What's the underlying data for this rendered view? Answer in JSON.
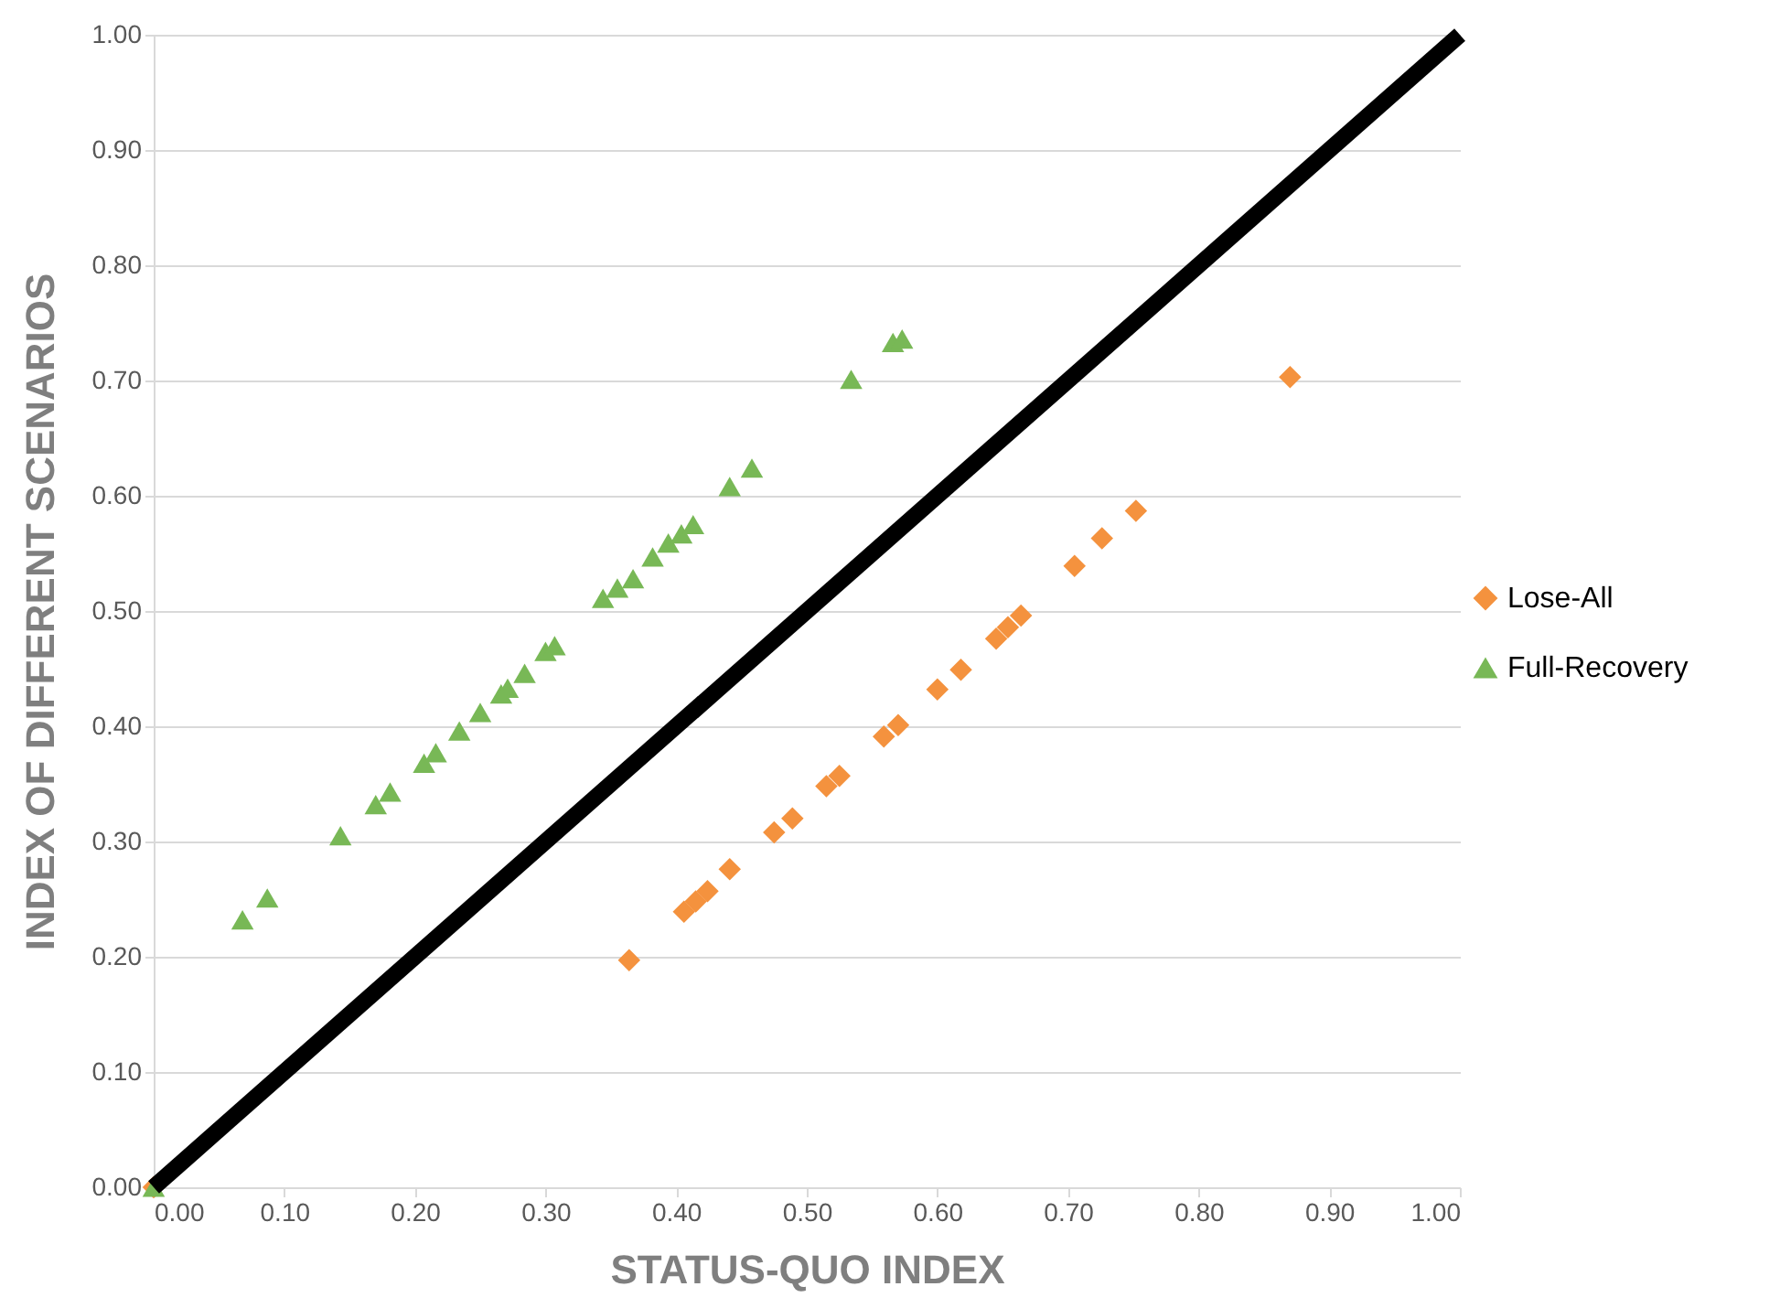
{
  "chart_data": {
    "type": "scatter",
    "xlabel": "STATUS-QUO INDEX",
    "ylabel": "INDEX OF DIFFERENT SCENARIOS",
    "xlim": [
      0,
      1
    ],
    "ylim": [
      0,
      1
    ],
    "xticks": [
      {
        "value": 0,
        "label": "0.00"
      },
      {
        "value": 0.1,
        "label": "0.10"
      },
      {
        "value": 0.2,
        "label": "0.20"
      },
      {
        "value": 0.3,
        "label": "0.30"
      },
      {
        "value": 0.4,
        "label": "0.40"
      },
      {
        "value": 0.5,
        "label": "0.50"
      },
      {
        "value": 0.6,
        "label": "0.60"
      },
      {
        "value": 0.7,
        "label": "0.70"
      },
      {
        "value": 0.8,
        "label": "0.80"
      },
      {
        "value": 0.9,
        "label": "0.90"
      },
      {
        "value": 1,
        "label": "1.00"
      }
    ],
    "yticks": [
      {
        "value": 0,
        "label": "0.00"
      },
      {
        "value": 0.1,
        "label": "0.10"
      },
      {
        "value": 0.2,
        "label": "0.20"
      },
      {
        "value": 0.3,
        "label": "0.30"
      },
      {
        "value": 0.4,
        "label": "0.40"
      },
      {
        "value": 0.5,
        "label": "0.50"
      },
      {
        "value": 0.6,
        "label": "0.60"
      },
      {
        "value": 0.7,
        "label": "0.70"
      },
      {
        "value": 0.8,
        "label": "0.80"
      },
      {
        "value": 0.9,
        "label": "0.90"
      },
      {
        "value": 1,
        "label": "1.00"
      }
    ],
    "grid": "y",
    "legend": "right",
    "series": [
      {
        "name": "Lose-All",
        "color": "#f4923e",
        "marker": "diamond",
        "x": [
          0,
          0.364,
          0.406,
          0.415,
          0.424,
          0.441,
          0.475,
          0.489,
          0.515,
          0.525,
          0.559,
          0.57,
          0.6,
          0.618,
          0.645,
          0.654,
          0.664,
          0.705,
          0.726,
          0.752,
          0.87
        ],
        "values": [
          0,
          0.197,
          0.239,
          0.248,
          0.257,
          0.276,
          0.308,
          0.32,
          0.348,
          0.357,
          0.391,
          0.401,
          0.432,
          0.449,
          0.476,
          0.486,
          0.496,
          0.539,
          0.563,
          0.587,
          0.703
        ]
      },
      {
        "name": "Full-Recovery",
        "color": "#78b856",
        "marker": "triangle",
        "x": [
          0,
          0.068,
          0.087,
          0.143,
          0.17,
          0.181,
          0.207,
          0.216,
          0.234,
          0.25,
          0.266,
          0.271,
          0.284,
          0.3,
          0.307,
          0.344,
          0.355,
          0.367,
          0.382,
          0.394,
          0.404,
          0.413,
          0.441,
          0.458,
          0.534,
          0.566,
          0.573
        ],
        "values": [
          0,
          0.232,
          0.251,
          0.305,
          0.332,
          0.343,
          0.368,
          0.377,
          0.396,
          0.412,
          0.428,
          0.433,
          0.446,
          0.465,
          0.47,
          0.511,
          0.52,
          0.528,
          0.547,
          0.559,
          0.567,
          0.575,
          0.608,
          0.624,
          0.701,
          0.733,
          0.736
        ]
      },
      {
        "type": "line",
        "color": "#000000",
        "x": [
          0,
          1
        ],
        "values": [
          0,
          1
        ]
      }
    ]
  }
}
